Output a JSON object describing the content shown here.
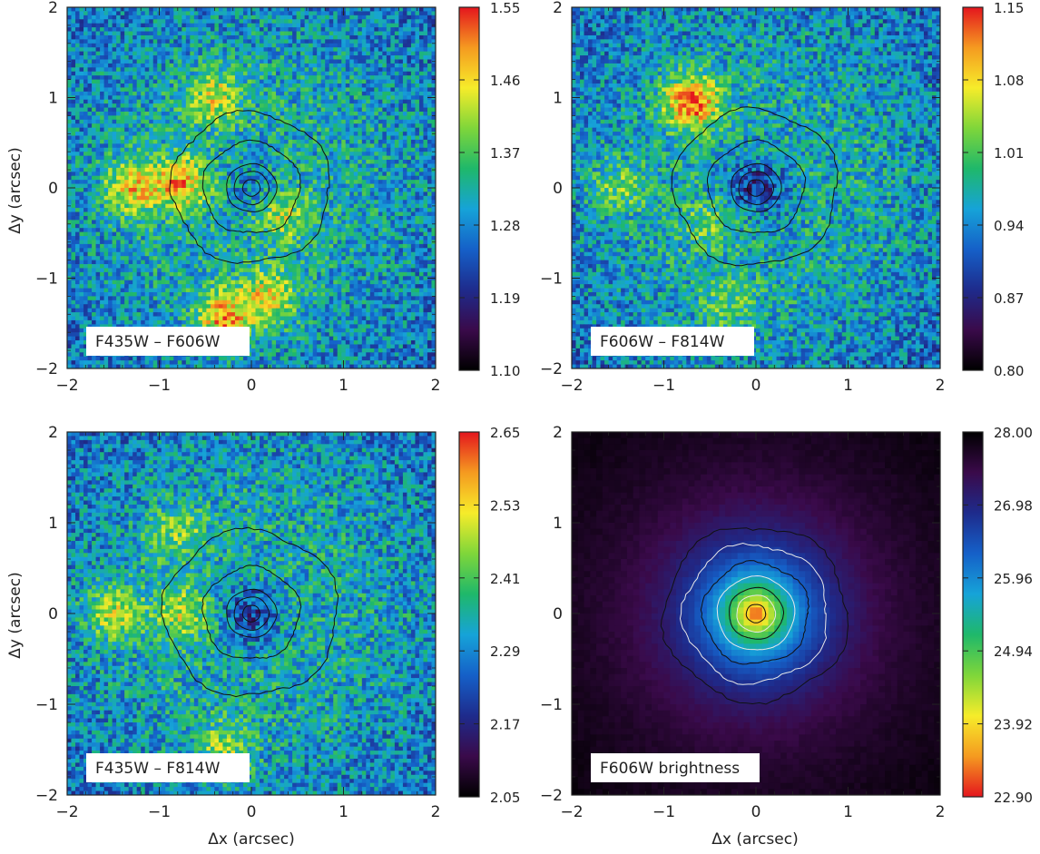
{
  "figure": {
    "x_axis_label": "Δx (arcsec)",
    "y_axis_label": "Δy (arcsec)"
  },
  "chart_data": [
    {
      "type": "heatmap",
      "panel_label": "F435W – F606W",
      "xlim": [
        -2,
        2
      ],
      "ylim": [
        -2,
        2
      ],
      "xticks": [
        "−2",
        "−1",
        "0",
        "1",
        "2"
      ],
      "yticks": [
        "−2",
        "−1",
        "0",
        "1",
        "2"
      ],
      "colorbar_range": [
        1.1,
        1.55
      ],
      "colorbar_ticks": [
        "1.55",
        "1.46",
        "1.37",
        "1.28",
        "1.19",
        "1.10"
      ],
      "colormap": [
        "#000000",
        "#3a0a4a",
        "#1e2b8c",
        "#1560c8",
        "#16a3d8",
        "#1fb86a",
        "#7fd63a",
        "#f6ec2a",
        "#f59a20",
        "#e4161e"
      ],
      "contour_radii": [
        0.09,
        0.18,
        0.26,
        0.5,
        0.82
      ],
      "contour_color": "#111111",
      "features": [
        {
          "x": -1.3,
          "y": 0.0,
          "value": 1.47
        },
        {
          "x": -0.75,
          "y": 0.05,
          "value": 1.48
        },
        {
          "x": -0.4,
          "y": 1.0,
          "value": 1.44
        },
        {
          "x": 0.2,
          "y": -1.2,
          "value": 1.45
        },
        {
          "x": -0.3,
          "y": -1.45,
          "value": 1.5
        },
        {
          "x": 0.35,
          "y": -0.3,
          "value": 1.42
        },
        {
          "x": 0.0,
          "y": 0.0,
          "value": 1.28
        }
      ]
    },
    {
      "type": "heatmap",
      "panel_label": "F606W – F814W",
      "xlim": [
        -2,
        2
      ],
      "ylim": [
        -2,
        2
      ],
      "xticks": [
        "−2",
        "−1",
        "0",
        "1",
        "2"
      ],
      "yticks": [
        "−2",
        "−1",
        "0",
        "1",
        "2"
      ],
      "colorbar_range": [
        0.8,
        1.15
      ],
      "colorbar_ticks": [
        "1.15",
        "1.08",
        "1.01",
        "0.94",
        "0.87",
        "0.80"
      ],
      "colormap": [
        "#000000",
        "#3a0a4a",
        "#1e2b8c",
        "#1560c8",
        "#16a3d8",
        "#1fb86a",
        "#7fd63a",
        "#f6ec2a",
        "#f59a20",
        "#e4161e"
      ],
      "contour_radii": [
        0.09,
        0.18,
        0.26,
        0.5,
        0.85
      ],
      "contour_color": "#111111",
      "features": [
        {
          "x": -0.7,
          "y": 0.95,
          "value": 1.13
        },
        {
          "x": -1.5,
          "y": 0.0,
          "value": 1.03
        },
        {
          "x": -0.5,
          "y": -0.4,
          "value": 1.02
        },
        {
          "x": -0.3,
          "y": -1.3,
          "value": 1.02
        },
        {
          "x": 0.0,
          "y": 0.0,
          "value": 0.88
        }
      ]
    },
    {
      "type": "heatmap",
      "panel_label": "F435W – F814W",
      "xlim": [
        -2,
        2
      ],
      "ylim": [
        -2,
        2
      ],
      "xticks": [
        "−2",
        "−1",
        "0",
        "1",
        "2"
      ],
      "yticks": [
        "−2",
        "−1",
        "0",
        "1",
        "2"
      ],
      "colorbar_range": [
        2.05,
        2.65
      ],
      "colorbar_ticks": [
        "2.65",
        "2.53",
        "2.41",
        "2.29",
        "2.17",
        "2.05"
      ],
      "colormap": [
        "#000000",
        "#3a0a4a",
        "#1e2b8c",
        "#1560c8",
        "#16a3d8",
        "#1fb86a",
        "#7fd63a",
        "#f6ec2a",
        "#f59a20",
        "#e4161e"
      ],
      "contour_radii": [
        0.09,
        0.18,
        0.26,
        0.5,
        0.9
      ],
      "contour_color": "#111111",
      "features": [
        {
          "x": -1.5,
          "y": 0.0,
          "value": 2.5
        },
        {
          "x": -0.75,
          "y": 0.0,
          "value": 2.48
        },
        {
          "x": -0.8,
          "y": 0.9,
          "value": 2.45
        },
        {
          "x": -0.3,
          "y": -1.5,
          "value": 2.47
        },
        {
          "x": 0.0,
          "y": 0.0,
          "value": 2.2
        }
      ]
    },
    {
      "type": "heatmap",
      "panel_label": "F606W brightness",
      "xlim": [
        -2,
        2
      ],
      "ylim": [
        -2,
        2
      ],
      "xticks": [
        "−2",
        "−1",
        "0",
        "1",
        "2"
      ],
      "yticks": [
        "−2",
        "−1",
        "0",
        "1",
        "2"
      ],
      "colorbar_range": [
        22.9,
        28.0
      ],
      "colorbar_ticks": [
        "28.00",
        "26.98",
        "25.96",
        "24.94",
        "23.92",
        "22.90"
      ],
      "colormap": [
        "#e4161e",
        "#f59a20",
        "#f6ec2a",
        "#7fd63a",
        "#1fb86a",
        "#16a3d8",
        "#1560c8",
        "#1e2b8c",
        "#3a0a4a",
        "#000000"
      ],
      "contour_radii": [
        0.1,
        0.2,
        0.28,
        0.4,
        0.55,
        0.75,
        0.95
      ],
      "contour_color": "#111111",
      "features": [
        {
          "x": 0.0,
          "y": 0.0,
          "value": 22.9
        }
      ]
    }
  ]
}
